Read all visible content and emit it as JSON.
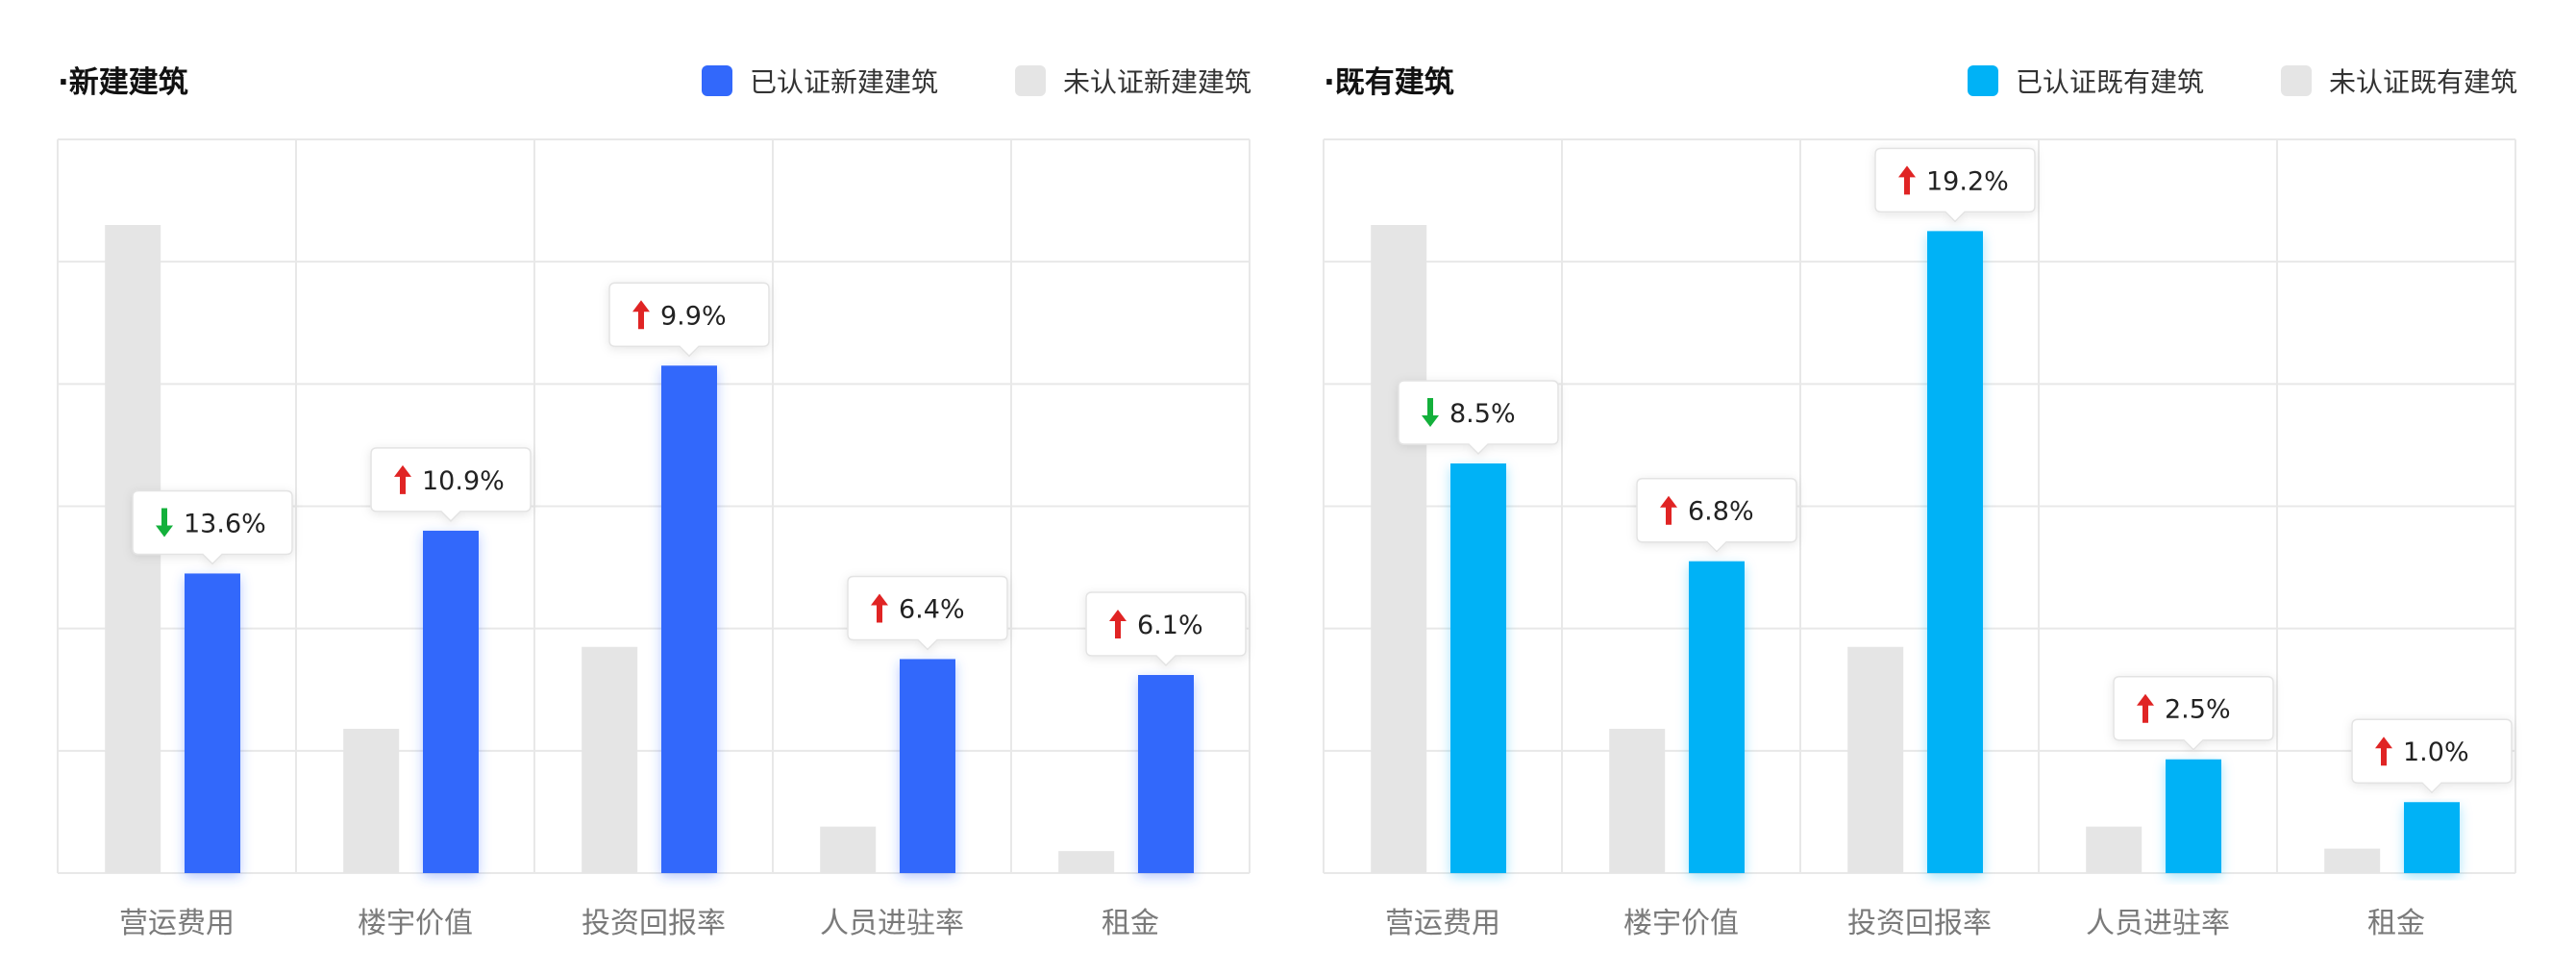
{
  "colors": {
    "new_certified": "#3268FB",
    "existing_certified": "#00B2F6",
    "uncertified": "#E5E5E5",
    "grid": "#E8E8E8",
    "up_arrow": "#E02424",
    "down_arrow": "#13B03B"
  },
  "icons": {
    "up": "arrow-up-icon",
    "down": "arrow-down-icon"
  },
  "chart_data": [
    {
      "type": "bar",
      "title": "·新建建筑",
      "categories": [
        "营运费用",
        "楼宇价值",
        "投资回报率",
        "人员进驻率",
        "租金"
      ],
      "series": [
        {
          "name": "未认证新建建筑",
          "values": [
            5.3,
            1.18,
            1.85,
            0.38,
            0.18
          ]
        },
        {
          "name": "已认证新建建筑",
          "values": [
            2.45,
            2.8,
            4.15,
            1.75,
            1.62
          ]
        }
      ],
      "ylim": [
        0,
        6
      ],
      "grid": true,
      "legend_position": "top-right",
      "annotations": [
        {
          "label": "13.6%",
          "direction": "down"
        },
        {
          "label": "10.9%",
          "direction": "up"
        },
        {
          "label": "9.9%",
          "direction": "up"
        },
        {
          "label": "6.4%",
          "direction": "up"
        },
        {
          "label": "6.1%",
          "direction": "up"
        }
      ]
    },
    {
      "type": "bar",
      "title": "·既有建筑",
      "categories": [
        "营运费用",
        "楼宇价值",
        "投资回报率",
        "人员进驻率",
        "租金"
      ],
      "series": [
        {
          "name": "未认证既有建筑",
          "values": [
            5.3,
            1.18,
            1.85,
            0.38,
            0.2
          ]
        },
        {
          "name": "已认证既有建筑",
          "values": [
            3.35,
            2.55,
            5.25,
            0.93,
            0.58
          ]
        }
      ],
      "ylim": [
        0,
        6
      ],
      "grid": true,
      "legend_position": "top-right",
      "annotations": [
        {
          "label": "8.5%",
          "direction": "down"
        },
        {
          "label": "6.8%",
          "direction": "up"
        },
        {
          "label": "19.2%",
          "direction": "up"
        },
        {
          "label": "2.5%",
          "direction": "up"
        },
        {
          "label": "1.0%",
          "direction": "up"
        }
      ]
    }
  ]
}
